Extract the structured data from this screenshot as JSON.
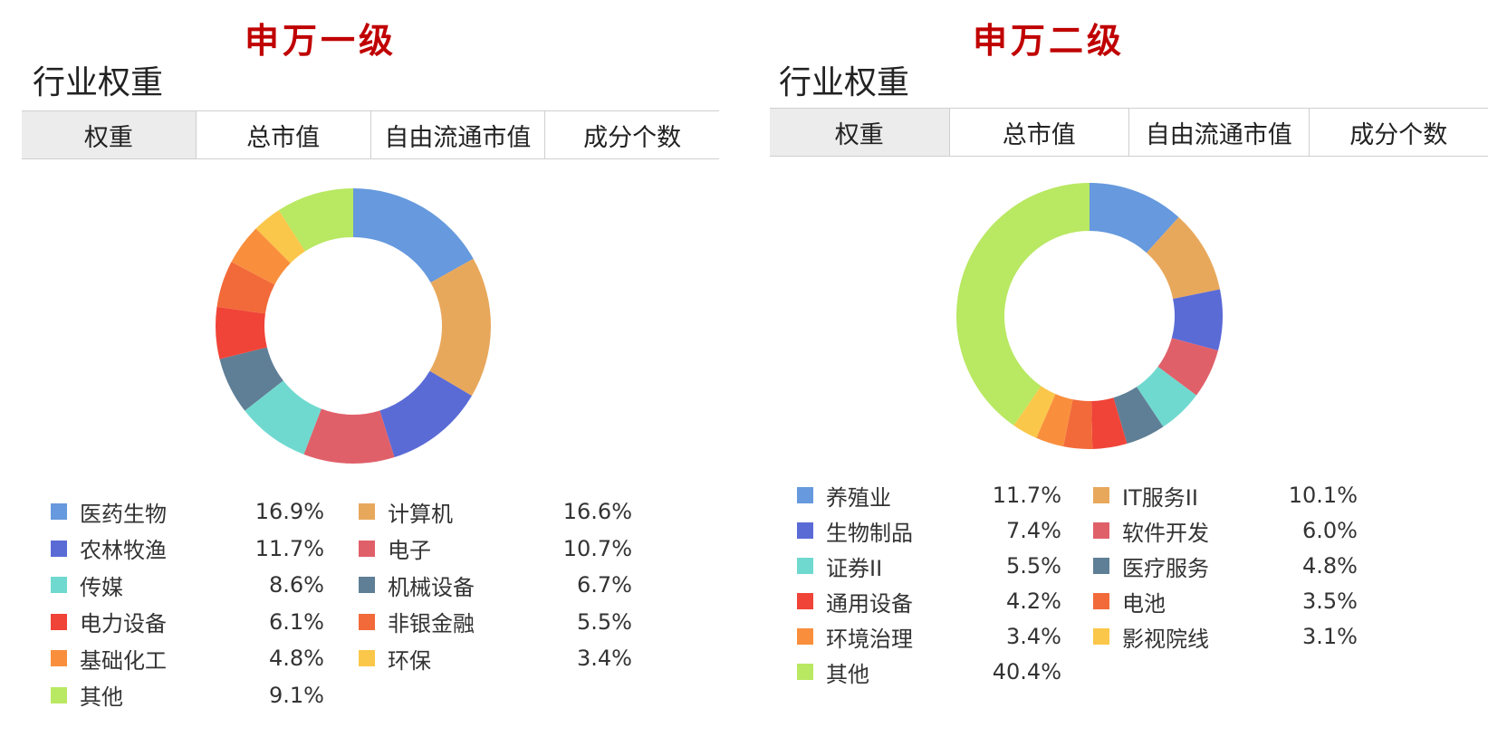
{
  "chart_data": [
    {
      "type": "pie",
      "title": "申万一级",
      "subtitle": "行业权重",
      "tabs": [
        "权重",
        "总市值",
        "自由流通市值",
        "成分个数"
      ],
      "active_tab": 0,
      "legend_position": "bottom",
      "slices": [
        {
          "label": "医药生物",
          "value": 16.9,
          "display": "16.9%",
          "color": "#6699dd"
        },
        {
          "label": "计算机",
          "value": 16.6,
          "display": "16.6%",
          "color": "#e8a85c"
        },
        {
          "label": "农林牧渔",
          "value": 11.7,
          "display": "11.7%",
          "color": "#5a6bd6"
        },
        {
          "label": "电子",
          "value": 10.7,
          "display": "10.7%",
          "color": "#e0606a"
        },
        {
          "label": "传媒",
          "value": 8.6,
          "display": "8.6%",
          "color": "#70d9cf"
        },
        {
          "label": "机械设备",
          "value": 6.7,
          "display": "6.7%",
          "color": "#5f7f96"
        },
        {
          "label": "电力设备",
          "value": 6.1,
          "display": "6.1%",
          "color": "#f04438"
        },
        {
          "label": "非银金融",
          "value": 5.5,
          "display": "5.5%",
          "color": "#f26a3a"
        },
        {
          "label": "基础化工",
          "value": 4.8,
          "display": "4.8%",
          "color": "#f98f3d"
        },
        {
          "label": "环保",
          "value": 3.4,
          "display": "3.4%",
          "color": "#fbc74a"
        },
        {
          "label": "其他",
          "value": 9.1,
          "display": "9.1%",
          "color": "#b9e862"
        }
      ]
    },
    {
      "type": "pie",
      "title": "申万二级",
      "subtitle": "行业权重",
      "tabs": [
        "权重",
        "总市值",
        "自由流通市值",
        "成分个数"
      ],
      "active_tab": 0,
      "legend_position": "bottom",
      "slices": [
        {
          "label": "养殖业",
          "value": 11.7,
          "display": "11.7%",
          "color": "#6699dd"
        },
        {
          "label": "IT服务II",
          "value": 10.1,
          "display": "10.1%",
          "color": "#e8a85c"
        },
        {
          "label": "生物制品",
          "value": 7.4,
          "display": "7.4%",
          "color": "#5a6bd6"
        },
        {
          "label": "软件开发",
          "value": 6.0,
          "display": "6.0%",
          "color": "#e0606a"
        },
        {
          "label": "证券II",
          "value": 5.5,
          "display": "5.5%",
          "color": "#70d9cf"
        },
        {
          "label": "医疗服务",
          "value": 4.8,
          "display": "4.8%",
          "color": "#5f7f96"
        },
        {
          "label": "通用设备",
          "value": 4.2,
          "display": "4.2%",
          "color": "#f04438"
        },
        {
          "label": "电池",
          "value": 3.5,
          "display": "3.5%",
          "color": "#f26a3a"
        },
        {
          "label": "环境治理",
          "value": 3.4,
          "display": "3.4%",
          "color": "#f98f3d"
        },
        {
          "label": "影视院线",
          "value": 3.1,
          "display": "3.1%",
          "color": "#fbc74a"
        },
        {
          "label": "其他",
          "value": 40.4,
          "display": "40.4%",
          "color": "#b9e862"
        }
      ]
    }
  ]
}
